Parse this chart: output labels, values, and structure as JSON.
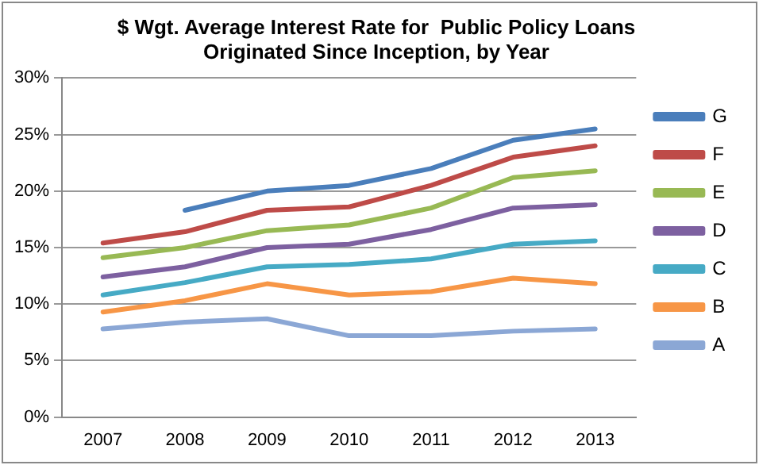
{
  "chart_data": {
    "type": "line",
    "title": "$ Wgt. Average Interest Rate for  Public Policy Loans\nOriginated Since Inception, by Year",
    "categories": [
      "2007",
      "2008",
      "2009",
      "2010",
      "2011",
      "2012",
      "2013"
    ],
    "series": [
      {
        "name": "G",
        "color": "#4a7ebb",
        "values": [
          null,
          18.3,
          20.0,
          20.5,
          22.0,
          24.5,
          25.5
        ]
      },
      {
        "name": "F",
        "color": "#be4b48",
        "values": [
          15.4,
          16.4,
          18.3,
          18.6,
          20.5,
          23.0,
          24.0
        ]
      },
      {
        "name": "E",
        "color": "#98b954",
        "values": [
          14.1,
          15.0,
          16.5,
          17.0,
          18.5,
          21.2,
          21.8
        ]
      },
      {
        "name": "D",
        "color": "#7d60a0",
        "values": [
          12.4,
          13.3,
          15.0,
          15.3,
          16.6,
          18.5,
          18.8
        ]
      },
      {
        "name": "C",
        "color": "#46aac5",
        "values": [
          10.8,
          11.9,
          13.3,
          13.5,
          14.0,
          15.3,
          15.6
        ]
      },
      {
        "name": "B",
        "color": "#f79646",
        "values": [
          9.3,
          10.3,
          11.8,
          10.8,
          11.1,
          12.3,
          11.8
        ]
      },
      {
        "name": "A",
        "color": "#8ba7d5",
        "values": [
          7.8,
          8.4,
          8.7,
          7.2,
          7.2,
          7.6,
          7.8
        ]
      }
    ],
    "ylim": [
      0,
      30
    ],
    "yticks": [
      {
        "value": 0,
        "label": "0%"
      },
      {
        "value": 5,
        "label": "5%"
      },
      {
        "value": 10,
        "label": "10%"
      },
      {
        "value": 15,
        "label": "15%"
      },
      {
        "value": 20,
        "label": "20%"
      },
      {
        "value": 25,
        "label": "25%"
      },
      {
        "value": 30,
        "label": "30%"
      }
    ],
    "grid": "y",
    "legend": "right",
    "marker": "none",
    "line_style": "solid"
  }
}
